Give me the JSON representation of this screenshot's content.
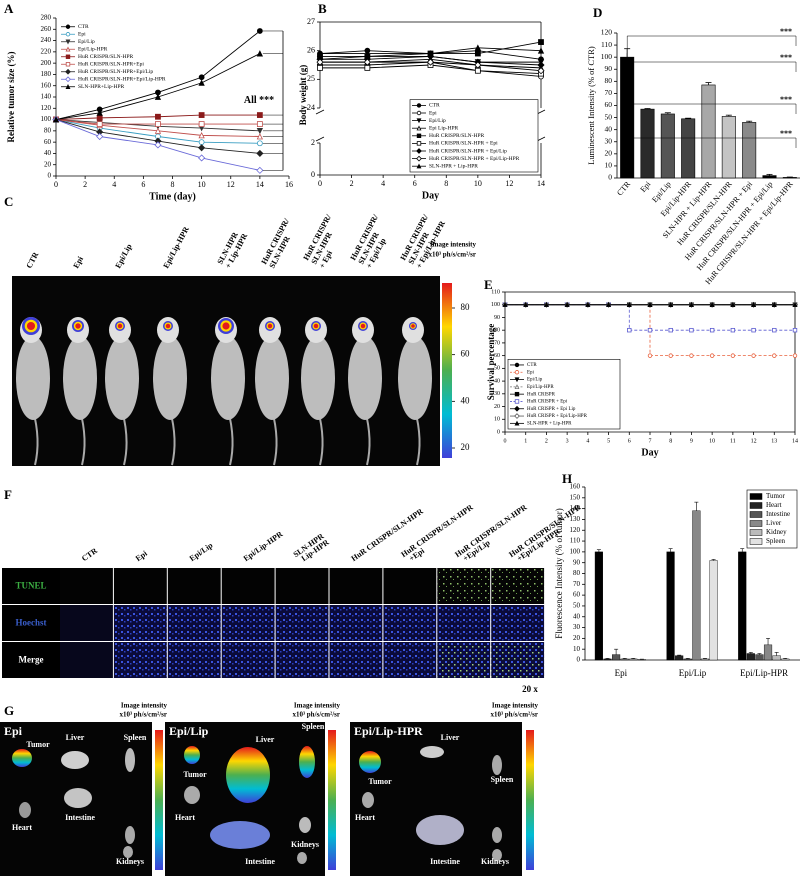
{
  "chart_data": [
    {
      "panel": "A",
      "type": "line",
      "x_label": "Time (day)",
      "y_label": "Relative tumor size (%)",
      "x": [
        0,
        3,
        7,
        10,
        14
      ],
      "xlim": [
        0,
        16
      ],
      "xticks": [
        0,
        2,
        4,
        6,
        8,
        10,
        12,
        14,
        16
      ],
      "ylim": [
        0,
        280
      ],
      "yticks": [
        0,
        20,
        40,
        60,
        80,
        100,
        120,
        140,
        160,
        180,
        200,
        220,
        240,
        260,
        280
      ],
      "annotation": "All ***",
      "legend": "upper left",
      "series": [
        {
          "name": "CTR",
          "color": "#000000",
          "marker": "o",
          "values": [
            100,
            118,
            148,
            175,
            257
          ]
        },
        {
          "name": "Epi",
          "color": "#3a9ec2",
          "marker": "o-open",
          "values": [
            100,
            85,
            70,
            60,
            58
          ]
        },
        {
          "name": "Epi/Lip",
          "color": "#333333",
          "marker": "v",
          "values": [
            100,
            95,
            88,
            85,
            80
          ]
        },
        {
          "name": "Epi/Lip-HPR",
          "color": "#c0504d",
          "marker": "^-open",
          "values": [
            100,
            90,
            80,
            72,
            70
          ]
        },
        {
          "name": "HuR CRISPR/SLN-HPR",
          "color": "#8b1a1a",
          "marker": "s",
          "values": [
            100,
            103,
            105,
            108,
            108
          ]
        },
        {
          "name": "HuR CRISPR/SLN-HPR+Epi",
          "color": "#c0504d",
          "marker": "s-open",
          "values": [
            100,
            92,
            92,
            92,
            92
          ]
        },
        {
          "name": "HuR CRISPR/SLN-HPR+Epi/Lip",
          "color": "#222222",
          "marker": "d",
          "values": [
            100,
            78,
            62,
            50,
            40
          ]
        },
        {
          "name": "HuR CRISPR/SLN-HPR+Epi/Lip-HPR",
          "color": "#6a6ad8",
          "marker": "d-open",
          "values": [
            100,
            70,
            55,
            32,
            10
          ]
        },
        {
          "name": "SLN-HPR+Lip-HPR",
          "color": "#000000",
          "marker": "^",
          "values": [
            100,
            112,
            140,
            165,
            217
          ]
        }
      ]
    },
    {
      "panel": "B",
      "type": "line",
      "x_label": "Day",
      "y_label": "Body weight (g)",
      "frame": true,
      "x": [
        0,
        3,
        7,
        10,
        14
      ],
      "xlim": [
        0,
        14
      ],
      "xticks": [
        0,
        2,
        4,
        6,
        8,
        10,
        12,
        14
      ],
      "ylim": [
        24,
        27
      ],
      "yticks": [
        24,
        25,
        26,
        27
      ],
      "ybreak": {
        "ylim": [
          0,
          2
        ],
        "yticks": [
          0,
          2
        ]
      },
      "legend": "lower right",
      "series": [
        {
          "name": "CTR",
          "color": "#000000",
          "marker": "o",
          "values": [
            25.9,
            26.0,
            25.9,
            26.0,
            25.7
          ]
        },
        {
          "name": "Epi",
          "color": "#000000",
          "marker": "o-open",
          "values": [
            25.5,
            25.5,
            25.6,
            25.3,
            25.1
          ]
        },
        {
          "name": "Epi/Lip",
          "color": "#000000",
          "marker": "v",
          "values": [
            25.7,
            25.8,
            25.8,
            25.6,
            25.6
          ]
        },
        {
          "name": "Epi Lip-HPR",
          "color": "#000000",
          "marker": "^-open",
          "values": [
            25.6,
            25.6,
            25.7,
            25.5,
            25.4
          ]
        },
        {
          "name": "HuR CRISPR/SLN-HPR",
          "color": "#000000",
          "marker": "s",
          "values": [
            25.8,
            25.8,
            25.9,
            25.9,
            26.3
          ]
        },
        {
          "name": "HuR CRISPR/SLN-HPR + Epi",
          "color": "#000000",
          "marker": "s-open",
          "values": [
            25.4,
            25.4,
            25.5,
            25.3,
            25.2
          ]
        },
        {
          "name": "HuR CRISPR/SLN-HPR + Epi/Lip",
          "color": "#000000",
          "marker": "d",
          "values": [
            25.7,
            25.7,
            25.8,
            25.6,
            25.5
          ]
        },
        {
          "name": "HuR CRISPR/SLN-HPR + Epi/Lip-HPR",
          "color": "#000000",
          "marker": "d-open",
          "values": [
            25.6,
            25.6,
            25.6,
            25.5,
            25.3
          ]
        },
        {
          "name": "SLN-HPR + Lip-HPR",
          "color": "#000000",
          "marker": "^",
          "values": [
            25.9,
            25.9,
            25.9,
            26.1,
            26.0
          ]
        }
      ]
    },
    {
      "panel": "D",
      "type": "bar",
      "y_label": "Luminescent Intensity (% of CTR)",
      "categories": [
        "CTR",
        "Epi",
        "Epi/Lip",
        "Epi/Lip-HPR",
        "SLN-HPR + Lip-HPR",
        "HuR CRISPR/SLN-HPR",
        "HuR CRISPR/SLN-HPR + Epi",
        "HuR CRISPR/SLN-HPR + Epi/Lip",
        "HuR CRISPR/SLN-HPR + Epi/Lip-HPR"
      ],
      "values": [
        100,
        57,
        53,
        49,
        77,
        51,
        46,
        2,
        0.5
      ],
      "errors": [
        7,
        0.5,
        1,
        0.5,
        2,
        1,
        1,
        1,
        0.3
      ],
      "colors": [
        "#000000",
        "#2a2a2a",
        "#555555",
        "#444444",
        "#a8a8a8",
        "#c4c4c4",
        "#8a8a8a",
        "#000000",
        "#ffffff"
      ],
      "ylim": [
        0,
        120
      ],
      "yticks": [
        0,
        10,
        20,
        30,
        40,
        50,
        60,
        70,
        80,
        90,
        100,
        110,
        120
      ],
      "annotations": [
        "***",
        "***",
        "***",
        "***"
      ]
    },
    {
      "panel": "E",
      "type": "line",
      "step": true,
      "frame": true,
      "x_label": "Day",
      "y_label": "Survival percentage",
      "x": [
        0,
        1,
        2,
        3,
        4,
        5,
        6,
        7,
        8,
        9,
        10,
        11,
        12,
        13,
        14
      ],
      "xlim": [
        0,
        14
      ],
      "xticks": [
        0,
        1,
        2,
        3,
        4,
        5,
        6,
        7,
        8,
        9,
        10,
        11,
        12,
        13,
        14
      ],
      "ylim": [
        0,
        110
      ],
      "yticks": [
        0,
        10,
        20,
        30,
        40,
        50,
        60,
        70,
        80,
        90,
        100,
        110
      ],
      "legend": "lower left",
      "series": [
        {
          "name": "CTR",
          "color": "#000000",
          "marker": "o",
          "values": [
            100,
            100,
            100,
            100,
            100,
            100,
            100,
            100,
            100,
            100,
            100,
            100,
            100,
            100,
            100
          ]
        },
        {
          "name": "Epi",
          "color": "#e8603c",
          "marker": "o-open",
          "dash": true,
          "values": [
            100,
            100,
            100,
            100,
            100,
            100,
            100,
            60,
            60,
            60,
            60,
            60,
            60,
            60,
            60
          ]
        },
        {
          "name": "Epi/Lip",
          "color": "#000000",
          "marker": "v",
          "values": [
            100,
            100,
            100,
            100,
            100,
            100,
            100,
            100,
            100,
            100,
            100,
            100,
            100,
            100,
            100
          ]
        },
        {
          "name": "Epi/Lip-HPR",
          "color": "#777777",
          "marker": "^-open",
          "dash": true,
          "values": [
            100,
            100,
            100,
            100,
            100,
            100,
            100,
            100,
            100,
            100,
            100,
            100,
            100,
            100,
            100
          ]
        },
        {
          "name": "HuR CRISPR",
          "color": "#000000",
          "marker": "s",
          "values": [
            100,
            100,
            100,
            100,
            100,
            100,
            100,
            100,
            100,
            100,
            100,
            100,
            100,
            100,
            100
          ]
        },
        {
          "name": "HuR CRISPR + Epi",
          "color": "#5a5ad0",
          "marker": "s-open",
          "dash": true,
          "values": [
            100,
            100,
            100,
            100,
            100,
            100,
            80,
            80,
            80,
            80,
            80,
            80,
            80,
            80,
            80
          ]
        },
        {
          "name": "HuR CRISPR + Epi Lip",
          "color": "#000000",
          "marker": "d",
          "values": [
            100,
            100,
            100,
            100,
            100,
            100,
            100,
            100,
            100,
            100,
            100,
            100,
            100,
            100,
            100
          ]
        },
        {
          "name": "HuR CRISPR + Epi/Lip-HPR",
          "color": "#555555",
          "marker": "d-open",
          "values": [
            100,
            100,
            100,
            100,
            100,
            100,
            100,
            100,
            100,
            100,
            100,
            100,
            100,
            100,
            100
          ]
        },
        {
          "name": "SLN-HPR + Lip-HPR",
          "color": "#000000",
          "marker": "^",
          "values": [
            100,
            100,
            100,
            100,
            100,
            100,
            100,
            100,
            100,
            100,
            100,
            100,
            100,
            100,
            100
          ]
        }
      ]
    },
    {
      "panel": "H",
      "type": "grouped_bar",
      "y_label": "Fluorescence Intensity (% of tumor)",
      "categories": [
        "Epi",
        "Epi/Lip",
        "Epi/Lip-HPR"
      ],
      "ylim": [
        0,
        160
      ],
      "yticks": [
        0,
        10,
        20,
        30,
        40,
        50,
        60,
        70,
        80,
        90,
        100,
        110,
        120,
        130,
        140,
        150,
        160
      ],
      "legend": "upper right",
      "series": [
        {
          "name": "Tumor",
          "color": "#000000",
          "values": [
            100,
            100,
            100
          ],
          "errors": [
            2,
            3,
            3
          ]
        },
        {
          "name": "Heart",
          "color": "#222222",
          "values": [
            1,
            4,
            6
          ],
          "errors": [
            0.5,
            0.5,
            1
          ]
        },
        {
          "name": "Intestine",
          "color": "#555555",
          "values": [
            5,
            1,
            5
          ],
          "errors": [
            5,
            0.5,
            1
          ]
        },
        {
          "name": "Liver",
          "color": "#888888",
          "values": [
            1,
            138,
            14
          ],
          "errors": [
            0.5,
            8,
            6
          ]
        },
        {
          "name": "Kidney",
          "color": "#bbbbbb",
          "values": [
            1,
            1,
            4
          ],
          "errors": [
            0.5,
            0.5,
            3
          ]
        },
        {
          "name": "Spleen",
          "color": "#e2e2e2",
          "values": [
            0.5,
            92,
            1
          ],
          "errors": [
            0.3,
            1,
            0.5
          ]
        }
      ]
    }
  ],
  "image_panels": {
    "C": {
      "panel": "C",
      "columns": [
        [
          "CTR"
        ],
        [
          "Epi"
        ],
        [
          "Epi/Lip"
        ],
        [
          "Epi/Lip-HPR"
        ],
        [
          "SLN-HPR",
          "+ Lip-HPR"
        ],
        [
          "HuR CRISPR/",
          "SLN-HPR"
        ],
        [
          "HuR CRISPR/",
          "SLN-HPR",
          "+ Epi"
        ],
        [
          "HuR CRISPR/",
          "SLN-HPR",
          "+ Epi/Lip"
        ],
        [
          "HuR CRISPR/",
          "SLN-HPR",
          "+ Epi/Lip-HPR"
        ]
      ],
      "intensity_label": "Image intensity",
      "intensity_units": "x10³ ph/s/cm²/sr",
      "colorbar_ticks": [
        20,
        40,
        60,
        80
      ]
    },
    "F": {
      "panel": "F",
      "columns": [
        [
          "CTR"
        ],
        [
          "Epi"
        ],
        [
          "Epi/Lip"
        ],
        [
          "Epi/Lip-HPR"
        ],
        [
          "SLN-HPR",
          "Lip-HPR"
        ],
        [
          "HuR CRISPR/SLN-HPR"
        ],
        [
          "HuR CRISPR/SLN-HPR",
          "+Epi"
        ],
        [
          "HuR CRISPR/SLN-HPR",
          "+Epi/Lip"
        ],
        [
          "HuR CRISPR/SLN-HPR",
          "+Epi/Lip-HPR"
        ]
      ],
      "rows": [
        "TUNEL",
        "Hoechst",
        "Merge"
      ],
      "magnification": "20 x"
    },
    "G": {
      "panel": "G",
      "blocks": [
        {
          "title": "Epi",
          "labels": [
            "Tumor",
            "Liver",
            "Spleen",
            "Intestine",
            "Heart",
            "Kidneys"
          ],
          "intensity_label": "Image intensity",
          "intensity_units": "x10³ ph/s/cm²/sr"
        },
        {
          "title": "Epi/Lip",
          "labels": [
            "Liver",
            "Spleen",
            "Tumor",
            "Heart",
            "Intestine",
            "Kidneys"
          ],
          "intensity_label": "Image intensity",
          "intensity_units": "x10³ ph/s/cm²/sr"
        },
        {
          "title": "Epi/Lip-HPR",
          "labels": [
            "Liver",
            "Tumor",
            "Spleen",
            "Heart",
            "Intestine",
            "Kidneys"
          ],
          "intensity_label": "Image intensity",
          "intensity_units": "x10³ ph/s/cm²/sr"
        }
      ]
    }
  }
}
